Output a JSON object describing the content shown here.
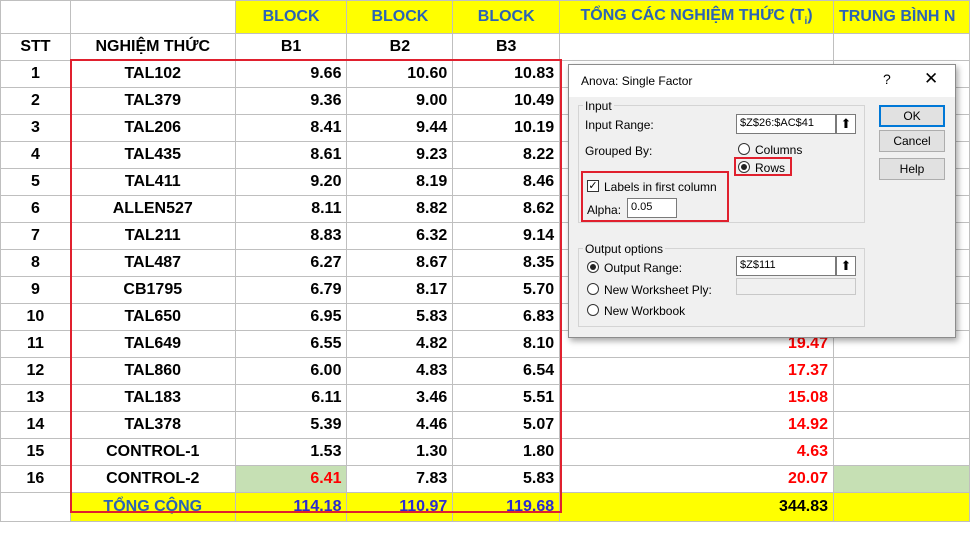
{
  "sheet": {
    "header_block": "BLOCK",
    "header_sum": "TỔNG CÁC NGHIỆM THỨC (T",
    "header_sum_sub": "i",
    "header_sum_close": ")",
    "header_avg": "TRUNG BÌNH N",
    "col_stt": "STT",
    "col_name": "NGHIỆM THỨC",
    "col_b1": "B1",
    "col_b2": "B2",
    "col_b3": "B3",
    "rows": [
      {
        "stt": "1",
        "name": "TAL102",
        "b1": "9.66",
        "b2": "10.60",
        "b3": "10.83",
        "sum": ""
      },
      {
        "stt": "2",
        "name": "TAL379",
        "b1": "9.36",
        "b2": "9.00",
        "b3": "10.49",
        "sum": ""
      },
      {
        "stt": "3",
        "name": "TAL206",
        "b1": "8.41",
        "b2": "9.44",
        "b3": "10.19",
        "sum": ""
      },
      {
        "stt": "4",
        "name": "TAL435",
        "b1": "8.61",
        "b2": "9.23",
        "b3": "8.22",
        "sum": ""
      },
      {
        "stt": "5",
        "name": "TAL411",
        "b1": "9.20",
        "b2": "8.19",
        "b3": "8.46",
        "sum": ""
      },
      {
        "stt": "6",
        "name": "ALLEN527",
        "b1": "8.11",
        "b2": "8.82",
        "b3": "8.62",
        "sum": ""
      },
      {
        "stt": "7",
        "name": "TAL211",
        "b1": "8.83",
        "b2": "6.32",
        "b3": "9.14",
        "sum": ""
      },
      {
        "stt": "8",
        "name": "TAL487",
        "b1": "6.27",
        "b2": "8.67",
        "b3": "8.35",
        "sum": ""
      },
      {
        "stt": "9",
        "name": "CB1795",
        "b1": "6.79",
        "b2": "8.17",
        "b3": "5.70",
        "sum": ""
      },
      {
        "stt": "10",
        "name": "TAL650",
        "b1": "6.95",
        "b2": "5.83",
        "b3": "6.83",
        "sum": ""
      },
      {
        "stt": "11",
        "name": "TAL649",
        "b1": "6.55",
        "b2": "4.82",
        "b3": "8.10",
        "sum": "19.47"
      },
      {
        "stt": "12",
        "name": "TAL860",
        "b1": "6.00",
        "b2": "4.83",
        "b3": "6.54",
        "sum": "17.37"
      },
      {
        "stt": "13",
        "name": "TAL183",
        "b1": "6.11",
        "b2": "3.46",
        "b3": "5.51",
        "sum": "15.08"
      },
      {
        "stt": "14",
        "name": "TAL378",
        "b1": "5.39",
        "b2": "4.46",
        "b3": "5.07",
        "sum": "14.92"
      },
      {
        "stt": "15",
        "name": "CONTROL-1",
        "b1": "1.53",
        "b2": "1.30",
        "b3": "1.80",
        "sum": "4.63"
      },
      {
        "stt": "16",
        "name": "CONTROL-2",
        "b1": "6.41",
        "b2": "7.83",
        "b3": "5.83",
        "sum": "20.07"
      }
    ],
    "total_label": "TỔNG CỘNG",
    "total_b1": "114.18",
    "total_b2": "110.97",
    "total_b3": "119.68",
    "total_sum": "344.83"
  },
  "dialog": {
    "title": "Anova: Single Factor",
    "help_glyph": "?",
    "close_glyph": "✕",
    "input_group": "Input",
    "input_range_label": "Input Range:",
    "input_range_value": "$Z$26:$AC$41",
    "grouped_by_label": "Grouped By:",
    "columns_label": "Columns",
    "rows_label": "Rows",
    "grouped_by_selected": "Rows",
    "labels_checkbox_label": "Labels in first column",
    "labels_checked": true,
    "check_glyph": "✓",
    "alpha_label": "Alpha:",
    "alpha_value": "0.05",
    "output_group": "Output options",
    "output_range_label": "Output Range:",
    "output_range_value": "$Z$111",
    "new_ply_label": "New Worksheet Ply:",
    "new_workbook_label": "New Workbook",
    "output_selected": "Output Range",
    "ref_glyph": "⬆",
    "ok_label": "OK",
    "cancel_label": "Cancel",
    "help_label": "Help"
  },
  "colors": {
    "header_fill": "#ffff00",
    "header_text": "#2b63b5",
    "highlight_box": "#e0202e",
    "sum_text": "#ff0000",
    "total_blue": "#2b2bd0",
    "green_fill": "#c6e0b4"
  }
}
